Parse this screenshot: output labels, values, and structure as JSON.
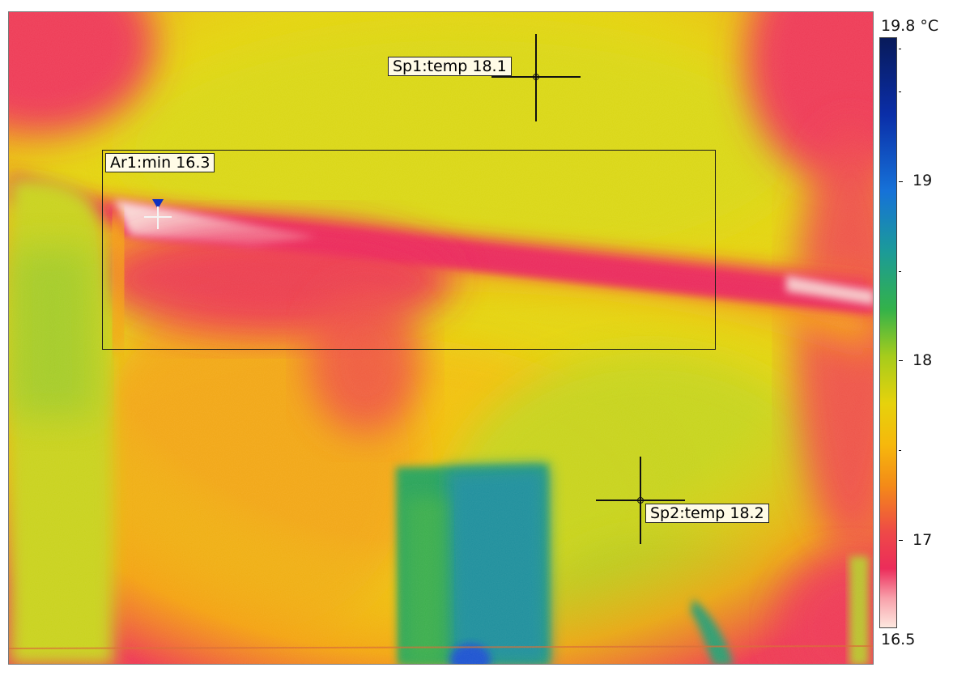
{
  "measurements": {
    "spot1": {
      "label": "Sp1:temp 18.1"
    },
    "spot2": {
      "label": "Sp2:temp 18.2"
    },
    "area1": {
      "label": "Ar1:min 16.3"
    }
  },
  "scale": {
    "unit_top": "19.8 °C",
    "bottom": "16.5",
    "ticks": [
      "19",
      "18",
      "17"
    ],
    "colors": {
      "cold": "#081a5a",
      "mid": "#e6d20c",
      "warm": "#ec2c5a",
      "hottest_light": "#fde8df"
    }
  }
}
